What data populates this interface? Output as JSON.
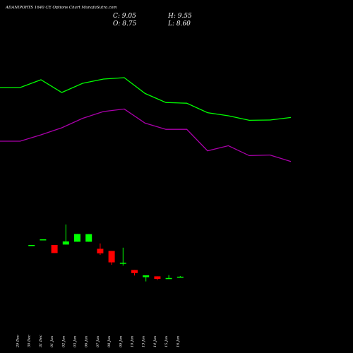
{
  "header": {
    "title": "ADANIPORTS 1640 CE Options Chart MunafaSutra.com",
    "close": "C: 9.05",
    "high": "H: 9.55",
    "open": "O: 8.75",
    "low": "L: 8.60"
  },
  "colors": {
    "background": "#000000",
    "up": "#00ff00",
    "down": "#ff0000",
    "upper_line": "#00ff00",
    "lower_line": "#aa00aa",
    "text": "#ffffff"
  },
  "chart_data": {
    "type": "candlestick",
    "categories": [
      "29 Dec",
      "30 Dec",
      "31 Dec",
      "01 Jan",
      "02 Jan",
      "03 Jan",
      "06 Jan",
      "07 Jan",
      "08 Jan",
      "09 Jan",
      "10 Jan",
      "13 Jan",
      "14 Jan",
      "15 Jan",
      "16 Jan"
    ],
    "ohlc": [
      {
        "date": "29 Dec",
        "open": null,
        "high": null,
        "low": null,
        "close": null
      },
      {
        "date": "30 Dec",
        "open": 31.5,
        "high": 31.5,
        "low": 31.5,
        "close": 31.5
      },
      {
        "date": "31 Dec",
        "open": 35.5,
        "high": 35.5,
        "low": 35.5,
        "close": 35.5
      },
      {
        "date": "01 Jan",
        "open": 31.5,
        "high": 31.5,
        "low": 25.8,
        "close": 25.8
      },
      {
        "date": "02 Jan",
        "open": 31.8,
        "high": 46.0,
        "low": 31.8,
        "close": 34.0
      },
      {
        "date": "03 Jan",
        "open": 33.8,
        "high": 39.3,
        "low": 33.8,
        "close": 39.3
      },
      {
        "date": "06 Jan",
        "open": 33.8,
        "high": 39.2,
        "low": 33.8,
        "close": 39.2
      },
      {
        "date": "07 Jan",
        "open": 28.8,
        "high": 32.6,
        "low": 24.5,
        "close": 25.6
      },
      {
        "date": "08 Jan",
        "open": 27.3,
        "high": 27.3,
        "low": 17.5,
        "close": 19.2
      },
      {
        "date": "09 Jan",
        "open": 18.4,
        "high": 29.6,
        "low": 16.9,
        "close": 18.9
      },
      {
        "date": "10 Jan",
        "open": 13.8,
        "high": 13.8,
        "low": 9.9,
        "close": 11.6
      },
      {
        "date": "13 Jan",
        "open": 8.7,
        "high": 10.0,
        "low": 5.7,
        "close": 10.0
      },
      {
        "date": "14 Jan",
        "open": 9.3,
        "high": 9.3,
        "low": 6.6,
        "close": 7.5
      },
      {
        "date": "15 Jan",
        "open": 8.0,
        "high": 10.2,
        "low": 7.8,
        "close": 8.1
      },
      {
        "date": "16 Jan",
        "open": 8.75,
        "high": 9.55,
        "low": 8.6,
        "close": 9.05
      }
    ],
    "upper_band": [
      143.0,
      143.0,
      148.5,
      139.5,
      146.0,
      149.0,
      150.0,
      138.8,
      132.4,
      131.9,
      125.2,
      123.0,
      119.8,
      120.0,
      121.8
    ],
    "lower_band": [
      105.0,
      105.0,
      109.5,
      114.5,
      121.2,
      126.0,
      127.8,
      117.8,
      113.4,
      113.4,
      98.2,
      101.8,
      94.8,
      95.2,
      90.6
    ],
    "ylim": [
      0,
      180
    ],
    "grid": false
  }
}
